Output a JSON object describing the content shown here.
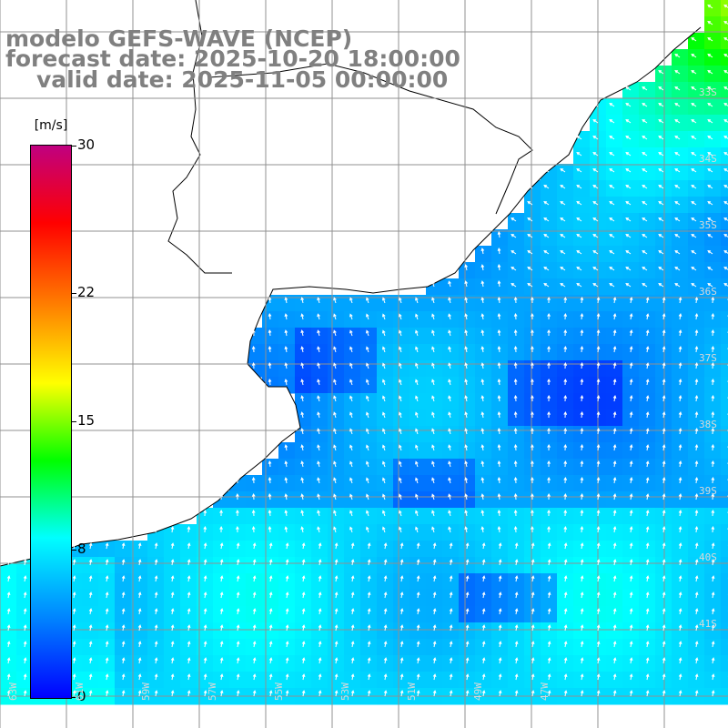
{
  "title": {
    "line1": "modelo GEFS-WAVE (NCEP)",
    "line2": "forecast date: 2025-10-20 18:00:00",
    "line3": "valid date: 2025-11-05 00:00:00"
  },
  "colorbar": {
    "unit": "[m/s]",
    "ticks": [
      {
        "label": "30",
        "value": 30
      },
      {
        "label": "22",
        "value": 22
      },
      {
        "label": "15",
        "value": 15
      },
      {
        "label": "8",
        "value": 8
      },
      {
        "label": "0",
        "value": 0
      }
    ],
    "min": 0,
    "max": 30,
    "colors": [
      "#0000ff",
      "#0080ff",
      "#00ffff",
      "#00ff00",
      "#ffff00",
      "#ff8000",
      "#ff0000",
      "#c00080"
    ]
  },
  "map": {
    "lat_labels": [
      "33S",
      "34S",
      "35S",
      "36S",
      "37S",
      "38S",
      "39S",
      "40S",
      "41S"
    ],
    "lon_labels": [
      "63W",
      "61W",
      "59W",
      "57W",
      "55W",
      "53W",
      "51W",
      "49W",
      "47W"
    ],
    "wind_direction": "northward arrows (southerly wind)",
    "land_color": "#ffffff",
    "coast_color": "#000000",
    "grid_color": "#909090"
  }
}
